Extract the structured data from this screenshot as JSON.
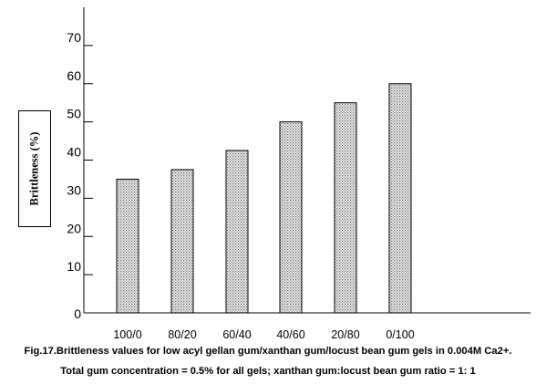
{
  "chart_data": {
    "type": "bar",
    "categories": [
      "100/0",
      "80/20",
      "60/40",
      "40/60",
      "20/80",
      "0/100"
    ],
    "values": [
      35,
      37.5,
      42.5,
      50,
      55,
      60
    ],
    "ylabel": "Brittleness (%)",
    "xlabel": "",
    "ylim": [
      0,
      80
    ],
    "yticks": [
      0,
      10,
      20,
      30,
      40,
      50,
      60,
      70
    ],
    "grid": false,
    "bar_fill": "#d8d8d8",
    "bar_pattern": "dotted"
  },
  "caption": {
    "line1": "Fig.17.Brittleness values for low acyl gellan gum/xanthan gum/locust bean gum gels in 0.004M Ca2+.",
    "line2": "Total gum concentration = 0.5% for all gels;    xanthan gum:locust bean gum ratio = 1: 1"
  }
}
